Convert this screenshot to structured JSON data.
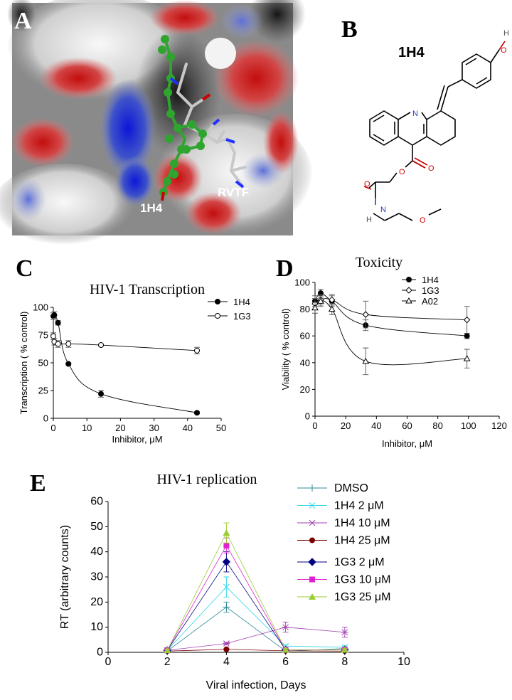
{
  "panels": {
    "a": {
      "letter": "A",
      "label_ligand": "1H4",
      "label_peptide": "RVTF"
    },
    "b": {
      "letter": "B",
      "compound_name": "1H4",
      "atoms": {
        "n_ring": "N",
        "o_hydroxyl": "O",
        "h_hydroxyl": "H",
        "o_ester": "O",
        "o_carbonyl1": "O",
        "o_carbonyl2": "O",
        "n_amide": "N",
        "h_amide": "H",
        "o_ether": "O"
      }
    },
    "c": {
      "letter": "C"
    },
    "d": {
      "letter": "D"
    },
    "e": {
      "letter": "E"
    }
  },
  "colors": {
    "chart_line": "#000000",
    "error_bar": "#555555",
    "surface_negative": "#cc1111",
    "surface_positive": "#1a2fd6",
    "ligand_green": "#2fa52f",
    "dmso": "#2e8b9a",
    "h4_2": "#33d6e6",
    "h4_10": "#a040b0",
    "h4_25": "#7a0000",
    "g3_2": "#000080",
    "g3_10": "#e020d0",
    "g3_25": "#9acd32"
  },
  "chart_data": [
    {
      "panel": "C",
      "type": "line",
      "title": "HIV-1 Transcription",
      "xlabel": "Inhibitor, μM",
      "ylabel": "Transcription ( % control)",
      "xlim": [
        0,
        50
      ],
      "ylim": [
        0,
        100
      ],
      "xticks": [
        "0",
        "10",
        "20",
        "30",
        "40",
        "50"
      ],
      "yticks": [
        "0",
        "25",
        "50",
        "75",
        "100"
      ],
      "legend_position": "top-right",
      "series": [
        {
          "name": "1H4",
          "marker": "filled-circle",
          "x": [
            0,
            0.3,
            1.4,
            4.5,
            14.2,
            42.8
          ],
          "y": [
            92,
            93,
            86,
            49,
            22,
            5
          ],
          "err": [
            3,
            3,
            2,
            1,
            3,
            1
          ]
        },
        {
          "name": "1G3",
          "marker": "open-circle",
          "x": [
            0,
            0.3,
            1.4,
            4.5,
            14.2,
            42.8
          ],
          "y": [
            74,
            69,
            67,
            67,
            66,
            61
          ],
          "err": [
            3,
            3,
            3,
            3,
            1,
            3
          ]
        }
      ]
    },
    {
      "panel": "D",
      "type": "line",
      "title": "Toxicity",
      "xlabel": "Inhibitor, μM",
      "ylabel": "Viability  ( % control)",
      "xlim": [
        0,
        120
      ],
      "ylim": [
        0,
        100
      ],
      "xticks": [
        "0",
        "20",
        "40",
        "60",
        "80",
        "100",
        "120"
      ],
      "yticks": [
        "0",
        "20",
        "40",
        "60",
        "80",
        "100"
      ],
      "legend_position": "top-right",
      "series": [
        {
          "name": "1H4",
          "marker": "filled-circle",
          "x": [
            0,
            3.7,
            11,
            33,
            99
          ],
          "y": [
            86,
            92,
            86,
            68,
            60
          ],
          "err": [
            4,
            3,
            4,
            4,
            2
          ]
        },
        {
          "name": "1G3",
          "marker": "open-diamond",
          "x": [
            0,
            3.7,
            11,
            33,
            99
          ],
          "y": [
            84,
            87,
            87,
            76,
            72
          ],
          "err": [
            4,
            4,
            4,
            10,
            10
          ]
        },
        {
          "name": "A02",
          "marker": "open-triangle",
          "x": [
            0,
            3.7,
            11,
            33,
            99
          ],
          "y": [
            81,
            86,
            80,
            41,
            43
          ],
          "err": [
            4,
            4,
            4,
            10,
            7
          ]
        }
      ]
    },
    {
      "panel": "E",
      "type": "line",
      "title": "HIV-1 replication",
      "xlabel": "Viral infection, Days",
      "ylabel": "RT (arbitrary counts)",
      "xlim": [
        0,
        10
      ],
      "ylim": [
        0,
        60
      ],
      "xticks": [
        "0",
        "2",
        "4",
        "6",
        "8",
        "10"
      ],
      "yticks": [
        "0",
        "10",
        "20",
        "30",
        "40",
        "50",
        "60"
      ],
      "legend_position": "top-right",
      "series": [
        {
          "name": "DMSO",
          "marker": "plus",
          "color_key": "dmso",
          "x": [
            2,
            4,
            6,
            8
          ],
          "y": [
            0.5,
            18,
            0.5,
            1.5
          ],
          "err": [
            0.5,
            2,
            0.5,
            0.5
          ]
        },
        {
          "name": "1H4   2 μM",
          "marker": "x",
          "color_key": "h4_2",
          "x": [
            2,
            4,
            6,
            8
          ],
          "y": [
            0.8,
            26,
            2.5,
            2
          ],
          "err": [
            0.5,
            4,
            0.5,
            0.5
          ]
        },
        {
          "name": "1H4  10 μM",
          "marker": "star",
          "color_key": "h4_10",
          "x": [
            2,
            4,
            6,
            8
          ],
          "y": [
            0.8,
            3.5,
            10,
            8
          ],
          "err": [
            0.5,
            0.5,
            2,
            2
          ]
        },
        {
          "name": "1H4  25 μM",
          "marker": "filled-circle",
          "color_key": "h4_25",
          "x": [
            2,
            4,
            6,
            8
          ],
          "y": [
            0.5,
            1.2,
            0.6,
            0.5
          ],
          "err": [
            0.3,
            0.3,
            0.3,
            0.3
          ]
        },
        {
          "name": "1G3   2 μM",
          "marker": "diamond",
          "color_key": "g3_2",
          "x": [
            2,
            4,
            6,
            8
          ],
          "y": [
            0.8,
            36,
            1,
            1
          ],
          "err": [
            0.5,
            4,
            0.5,
            0.5
          ]
        },
        {
          "name": "1G3  10 μM",
          "marker": "square",
          "color_key": "g3_10",
          "x": [
            2,
            4,
            6,
            8
          ],
          "y": [
            0.8,
            42.5,
            1,
            1
          ],
          "err": [
            0.5,
            3,
            0.5,
            0.5
          ]
        },
        {
          "name": "1G3   25 μM",
          "marker": "triangle",
          "color_key": "g3_25",
          "x": [
            2,
            4,
            6,
            8
          ],
          "y": [
            0.8,
            47.5,
            1,
            1
          ],
          "err": [
            0.5,
            4,
            0.5,
            0.5
          ]
        }
      ]
    }
  ]
}
